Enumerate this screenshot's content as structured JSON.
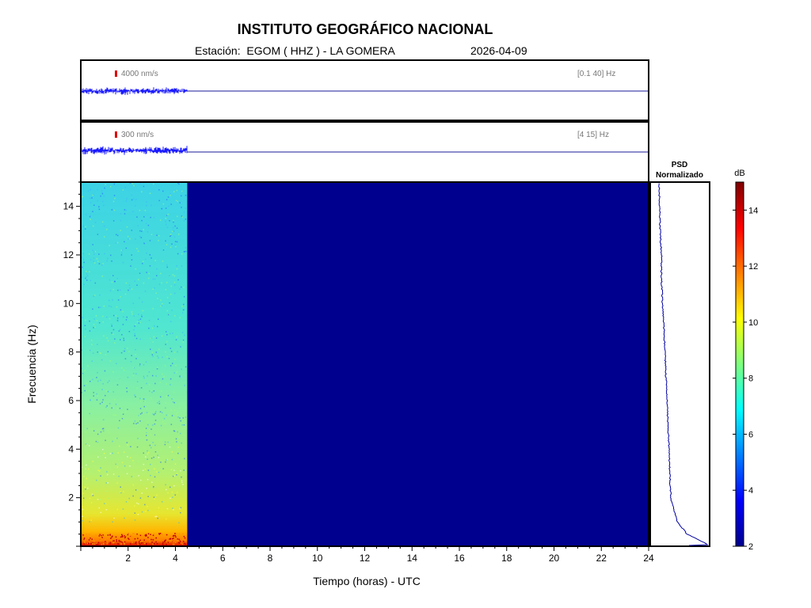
{
  "header": {
    "title": "INSTITUTO GEOGRÁFICO NACIONAL",
    "station_prefix": "Estación:",
    "station": "EGOM ( HHZ ) - LA GOMERA",
    "date": "2026-04-09"
  },
  "traces": [
    {
      "scale_label": "4000 nm/s",
      "band_label": "[0.1 40] Hz",
      "data_end_hour": 4.5
    },
    {
      "scale_label": "300 nm/s",
      "band_label": "[4 15] Hz",
      "data_end_hour": 4.5
    }
  ],
  "psd_panel": {
    "title_line1": "PSD",
    "title_line2": "Normalizado"
  },
  "colorbar": {
    "unit": "dB",
    "min": 2,
    "max": 15,
    "ticks": [
      "2",
      "4",
      "6",
      "8",
      "10",
      "12",
      "14"
    ]
  },
  "colors": {
    "trace": "#1a1aff",
    "psd_line": "#0000a0",
    "background_fill": "#00008f",
    "scale_bar": "#e00000"
  },
  "chart_data": {
    "type": "heatmap",
    "title": "INSTITUTO GEOGRÁFICO NACIONAL",
    "xlabel": "Tiempo (horas) - UTC",
    "ylabel": "Frecuencia  (Hz)",
    "xlim": [
      0,
      24
    ],
    "ylim": [
      0,
      15
    ],
    "x_ticks": [
      "2",
      "4",
      "6",
      "8",
      "10",
      "12",
      "14",
      "16",
      "18",
      "20",
      "22",
      "24"
    ],
    "y_ticks": [
      "2",
      "4",
      "6",
      "8",
      "10",
      "12",
      "14"
    ],
    "data_end_hour": 4.5,
    "colormap": "jet",
    "value_range_db": [
      2,
      15
    ],
    "psd_profile": [
      {
        "f": 0.1,
        "v": 1.0
      },
      {
        "f": 0.5,
        "v": 0.6
      },
      {
        "f": 1,
        "v": 0.4
      },
      {
        "f": 2,
        "v": 0.26
      },
      {
        "f": 3,
        "v": 0.24
      },
      {
        "f": 4,
        "v": 0.23
      },
      {
        "f": 5,
        "v": 0.2
      },
      {
        "f": 6,
        "v": 0.19
      },
      {
        "f": 7,
        "v": 0.16
      },
      {
        "f": 8,
        "v": 0.14
      },
      {
        "f": 9,
        "v": 0.12
      },
      {
        "f": 10,
        "v": 0.09
      },
      {
        "f": 11,
        "v": 0.07
      },
      {
        "f": 12,
        "v": 0.07
      },
      {
        "f": 13,
        "v": 0.04
      },
      {
        "f": 14,
        "v": 0.03
      },
      {
        "f": 15,
        "v": 0.02
      }
    ]
  }
}
